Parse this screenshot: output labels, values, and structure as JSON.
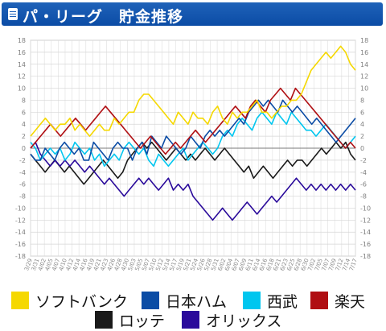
{
  "header": {
    "title": "パ・リーグ　貯金推移",
    "icon": "document-icon"
  },
  "chart_data": {
    "type": "line",
    "title": "",
    "xlabel": "",
    "ylabel": "",
    "ylim": [
      -18,
      18
    ],
    "yticks": [
      18,
      16,
      14,
      12,
      10,
      8,
      6,
      4,
      2,
      0,
      -2,
      -4,
      -6,
      -8,
      -10,
      -12,
      -14,
      -16,
      -18
    ],
    "grid": true,
    "legend_position": "bottom",
    "x_ticks": [
      "03/29",
      "03/31",
      "04/02",
      "04/05",
      "04/07",
      "04/10",
      "04/12",
      "04/14",
      "04/16",
      "04/19",
      "04/21",
      "04/23",
      "04/26",
      "04/28",
      "04/30",
      "05/03",
      "05/05",
      "05/07",
      "05/10",
      "05/12",
      "05/14",
      "05/17",
      "05/19",
      "05/21",
      "05/24",
      "05/26",
      "05/28",
      "05/31",
      "06/02",
      "06/04",
      "06/07",
      "06/09",
      "06/11",
      "06/14",
      "06/16",
      "06/18",
      "06/21",
      "06/23",
      "06/25",
      "06/28",
      "06/30",
      "07/02",
      "07/05",
      "07/07",
      "07/09",
      "07/12",
      "07/14",
      "07/17"
    ],
    "series": [
      {
        "name": "ソフトバンク",
        "color": "#f5d800",
        "values": [
          2,
          3,
          4,
          5,
          4,
          3,
          4,
          4,
          5,
          3,
          4,
          3,
          2,
          3,
          4,
          3,
          3,
          5,
          4,
          5,
          6,
          6,
          8,
          9,
          9,
          8,
          7,
          6,
          5,
          4,
          6,
          5,
          4,
          6,
          5,
          5,
          4,
          6,
          7,
          5,
          4,
          6,
          5,
          6,
          6,
          7,
          8,
          6,
          6,
          5,
          6,
          7,
          7,
          8,
          8,
          9,
          11,
          13,
          14,
          15,
          16,
          15,
          16,
          17,
          16,
          14,
          13
        ]
      },
      {
        "name": "日本ハム",
        "color": "#0b4ca5",
        "values": [
          -1,
          -2,
          -2,
          0,
          -1,
          -2,
          0,
          1,
          0,
          -1,
          0,
          -2,
          -2,
          1,
          0,
          -1,
          -2,
          0,
          1,
          0,
          0,
          -2,
          0,
          1,
          -1,
          2,
          1,
          0,
          2,
          1,
          0,
          -1,
          0,
          2,
          1,
          0,
          2,
          3,
          2,
          3,
          2,
          3,
          4,
          5,
          4,
          6,
          7,
          8,
          7,
          8,
          7,
          6,
          8,
          7,
          6,
          7,
          6,
          5,
          4,
          5,
          4,
          3,
          2,
          1,
          2,
          3,
          4,
          5
        ]
      },
      {
        "name": "西武",
        "color": "#00c6ef",
        "values": [
          1,
          0,
          -2,
          -1,
          0,
          -1,
          0,
          -2,
          -1,
          1,
          0,
          -1,
          0,
          -2,
          -1,
          -3,
          -2,
          -1,
          -2,
          0,
          1,
          0,
          -1,
          0,
          -2,
          -3,
          -1,
          -2,
          -3,
          -2,
          -1,
          0,
          -2,
          -1,
          0,
          1,
          0,
          -1,
          0,
          2,
          3,
          2,
          4,
          5,
          4,
          3,
          5,
          6,
          5,
          4,
          6,
          5,
          4,
          6,
          5,
          4,
          3,
          3,
          2,
          3,
          4,
          3,
          2,
          1,
          0,
          1,
          2
        ]
      },
      {
        "name": "楽天",
        "color": "#b00e12",
        "values": [
          0,
          1,
          2,
          3,
          4,
          3,
          2,
          3,
          4,
          5,
          4,
          3,
          4,
          5,
          6,
          7,
          6,
          5,
          4,
          3,
          2,
          1,
          0,
          1,
          2,
          1,
          0,
          -1,
          0,
          1,
          0,
          1,
          2,
          3,
          2,
          1,
          2,
          3,
          4,
          5,
          6,
          7,
          6,
          5,
          7,
          8,
          7,
          6,
          8,
          9,
          10,
          9,
          8,
          10,
          9,
          8,
          7,
          6,
          5,
          4,
          3,
          2,
          1,
          0,
          1,
          0
        ]
      },
      {
        "name": "ロッテ",
        "color": "#1a1a1a",
        "values": [
          -1,
          -2,
          -3,
          -4,
          -3,
          -2,
          -3,
          -4,
          -3,
          -4,
          -5,
          -6,
          -5,
          -4,
          -3,
          -2,
          -3,
          -4,
          -5,
          -4,
          -2,
          -1,
          0,
          1,
          0,
          1,
          0,
          -1,
          -2,
          -1,
          0,
          -1,
          -2,
          -1,
          -2,
          -1,
          0,
          -1,
          -2,
          -1,
          0,
          -1,
          -2,
          -3,
          -4,
          -3,
          -5,
          -4,
          -3,
          -4,
          -5,
          -4,
          -3,
          -2,
          -3,
          -2,
          -2,
          -3,
          -2,
          -1,
          0,
          -1,
          0,
          1,
          0,
          1,
          -1,
          -2
        ]
      },
      {
        "name": "オリックス",
        "color": "#2a0a9b",
        "values": [
          0,
          1,
          -1,
          -2,
          -3,
          -2,
          -3,
          -2,
          -3,
          -2,
          -3,
          -4,
          -3,
          -4,
          -5,
          -6,
          -5,
          -6,
          -7,
          -8,
          -7,
          -6,
          -5,
          -6,
          -5,
          -6,
          -7,
          -6,
          -5,
          -7,
          -6,
          -7,
          -6,
          -8,
          -9,
          -10,
          -11,
          -12,
          -11,
          -10,
          -11,
          -12,
          -11,
          -10,
          -9,
          -10,
          -11,
          -10,
          -9,
          -8,
          -9,
          -8,
          -7,
          -6,
          -5,
          -6,
          -7,
          -6,
          -7,
          -6,
          -7,
          -6,
          -7,
          -6,
          -7,
          -6,
          -7
        ]
      }
    ]
  }
}
